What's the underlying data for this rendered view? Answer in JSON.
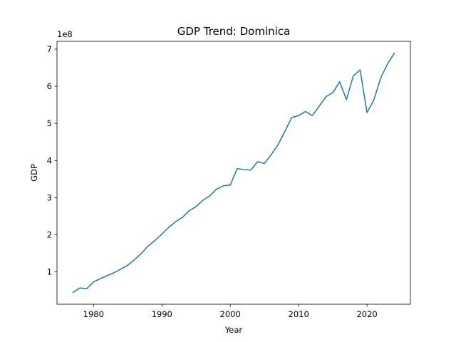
{
  "chart_data": {
    "type": "line",
    "title": "GDP Trend: Dominica",
    "xlabel": "Year",
    "ylabel": "GDP",
    "y_offset_label": "1e8",
    "x_ticks": [
      1980,
      1990,
      2000,
      2010,
      2020
    ],
    "y_ticks": [
      1,
      2,
      3,
      4,
      5,
      6,
      7
    ],
    "y_tick_multiplier": 100000000,
    "xlim": [
      1974.65,
      2026.35
    ],
    "ylim": [
      13000000,
      721000000
    ],
    "grid": false,
    "line_color": "#1f77b4",
    "series": [
      {
        "x": [
          1977,
          1978,
          1979,
          1980,
          1981,
          1982,
          1983,
          1984,
          1985,
          1986,
          1987,
          1988,
          1989,
          1990,
          1991,
          1992,
          1993,
          1994,
          1995,
          1996,
          1997,
          1998,
          1999,
          2000,
          2001,
          2002,
          2003,
          2004,
          2005,
          2006,
          2007,
          2008,
          2009,
          2010,
          2011,
          2012,
          2013,
          2014,
          2015,
          2016,
          2017,
          2018,
          2019,
          2020,
          2021,
          2022,
          2023,
          2024
        ],
        "y": [
          45000000,
          57000000,
          55000000,
          73000000,
          82000000,
          90000000,
          98000000,
          108000000,
          118000000,
          133000000,
          150000000,
          170000000,
          185000000,
          202000000,
          220000000,
          235000000,
          247000000,
          265000000,
          276000000,
          293000000,
          305000000,
          323000000,
          332000000,
          334000000,
          378000000,
          376000000,
          374000000,
          397000000,
          392000000,
          416000000,
          443000000,
          479000000,
          516000000,
          521000000,
          532000000,
          521000000,
          546000000,
          572000000,
          583000000,
          612000000,
          564000000,
          628000000,
          644000000,
          529000000,
          563000000,
          622000000,
          660000000,
          689000000
        ]
      }
    ]
  }
}
